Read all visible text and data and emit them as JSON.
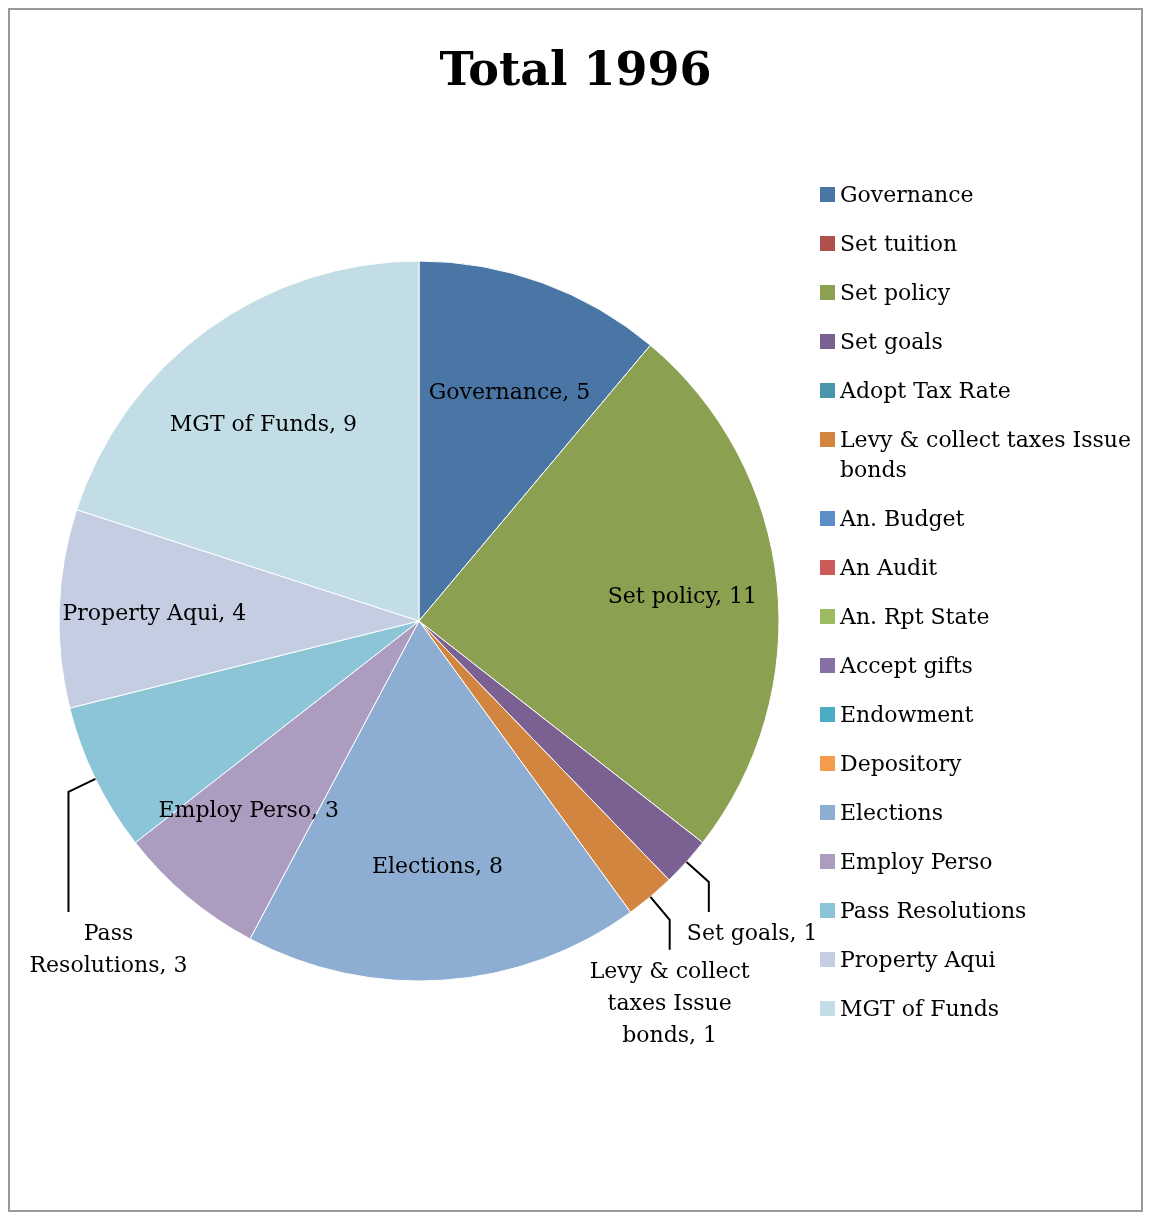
{
  "chart_data": {
    "type": "pie",
    "title": "Total 1996",
    "categories": [
      "Governance",
      "Set tuition",
      "Set policy",
      "Set goals",
      "Adopt Tax Rate",
      "Levy & collect taxes Issue bonds",
      "An. Budget",
      "An Audit",
      "An. Rpt State",
      "Accept gifts",
      "Endowment",
      "Depository",
      "Elections",
      "Employ Perso",
      "Pass Resolutions",
      "Property Aqui",
      "MGT of Funds"
    ],
    "values": [
      5,
      0,
      11,
      1,
      0,
      1,
      0,
      0,
      0,
      0,
      0,
      0,
      8,
      3,
      3,
      4,
      9
    ],
    "value_labels": [
      "Governance, 5",
      null,
      "Set policy, 11",
      "Set goals, 1",
      null,
      "Levy & collect taxes Issue bonds, 1",
      null,
      null,
      null,
      null,
      null,
      null,
      "Elections, 8",
      "Employ Perso, 3",
      "Pass Resolutions, 3",
      "Property Aqui, 4",
      "MGT of Funds, 9"
    ],
    "colors": [
      "#4a76a6",
      "#b0504d",
      "#8ca052",
      "#7a6191",
      "#4796ac",
      "#d1853e",
      "#5b8dc8",
      "#cc5b58",
      "#9dbb61",
      "#8670a6",
      "#4bacc6",
      "#f29c4c",
      "#8eadd2",
      "#ac9cc0",
      "#8bc5d7",
      "#c4cde1",
      "#c2dde6"
    ],
    "legend": "right"
  }
}
